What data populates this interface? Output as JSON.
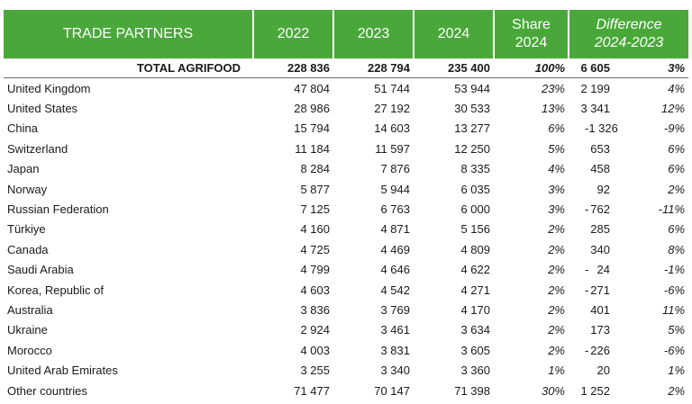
{
  "headers": {
    "partners": "TRADE PARTNERS",
    "y2022": "2022",
    "y2023": "2023",
    "y2024": "2024",
    "share_line1": "Share",
    "share_line2": "2024",
    "diff_line1": "Difference",
    "diff_line2": "2024-2023"
  },
  "total": {
    "name": "TOTAL AGRIFOOD",
    "y2022": "228 836",
    "y2023": "228 794",
    "y2024": "235 400",
    "share": "100%",
    "diff_abs": "6 605",
    "diff_pct": "3%"
  },
  "rows": [
    {
      "name": "United Kingdom",
      "y2022": "47 804",
      "y2023": "51 744",
      "y2024": "53 944",
      "share": "23%",
      "diff_abs": "2 199",
      "diff_pct": "4%"
    },
    {
      "name": "United States",
      "y2022": "28 986",
      "y2023": "27 192",
      "y2024": "30 533",
      "share": "13%",
      "diff_abs": "3 341",
      "diff_pct": "12%"
    },
    {
      "name": "China",
      "y2022": "15 794",
      "y2023": "14 603",
      "y2024": "13 277",
      "share": "6%",
      "diff_abs": "- 1 326",
      "diff_pct": "-9%"
    },
    {
      "name": "Switzerland",
      "y2022": "11 184",
      "y2023": "11 597",
      "y2024": "12 250",
      "share": "5%",
      "diff_abs": "653",
      "diff_pct": "6%"
    },
    {
      "name": "Japan",
      "y2022": "8 284",
      "y2023": "7 876",
      "y2024": "8 335",
      "share": "4%",
      "diff_abs": "458",
      "diff_pct": "6%"
    },
    {
      "name": "Norway",
      "y2022": "5 877",
      "y2023": "5 944",
      "y2024": "6 035",
      "share": "3%",
      "diff_abs": "92",
      "diff_pct": "2%"
    },
    {
      "name": "Russian Federation",
      "y2022": "7 125",
      "y2023": "6 763",
      "y2024": "6 000",
      "share": "3%",
      "diff_abs": "- 762",
      "diff_pct": "-11%"
    },
    {
      "name": "Türkiye",
      "y2022": "4 160",
      "y2023": "4 871",
      "y2024": "5 156",
      "share": "2%",
      "diff_abs": "285",
      "diff_pct": "6%"
    },
    {
      "name": "Canada",
      "y2022": "4 725",
      "y2023": "4 469",
      "y2024": "4 809",
      "share": "2%",
      "diff_abs": "340",
      "diff_pct": "8%"
    },
    {
      "name": "Saudi Arabia",
      "y2022": "4 799",
      "y2023": "4 646",
      "y2024": "4 622",
      "share": "2%",
      "diff_abs": "- 24",
      "diff_pct": "-1%"
    },
    {
      "name": "Korea, Republic of",
      "y2022": "4 603",
      "y2023": "4 542",
      "y2024": "4 271",
      "share": "2%",
      "diff_abs": "- 271",
      "diff_pct": "-6%"
    },
    {
      "name": "Australia",
      "y2022": "3 836",
      "y2023": "3 769",
      "y2024": "4 170",
      "share": "2%",
      "diff_abs": "401",
      "diff_pct": "11%"
    },
    {
      "name": "Ukraine",
      "y2022": "2 924",
      "y2023": "3 461",
      "y2024": "3 634",
      "share": "2%",
      "diff_abs": "173",
      "diff_pct": "5%"
    },
    {
      "name": "Morocco",
      "y2022": "4 003",
      "y2023": "3 831",
      "y2024": "3 605",
      "share": "2%",
      "diff_abs": "- 226",
      "diff_pct": "-6%"
    },
    {
      "name": "United Arab Emirates",
      "y2022": "3 255",
      "y2023": "3 340",
      "y2024": "3 360",
      "share": "1%",
      "diff_abs": "20",
      "diff_pct": "1%"
    },
    {
      "name": "Other countries",
      "y2022": "71 477",
      "y2023": "70 147",
      "y2024": "71 398",
      "share": "30%",
      "diff_abs": "1 252",
      "diff_pct": "2%"
    }
  ]
}
